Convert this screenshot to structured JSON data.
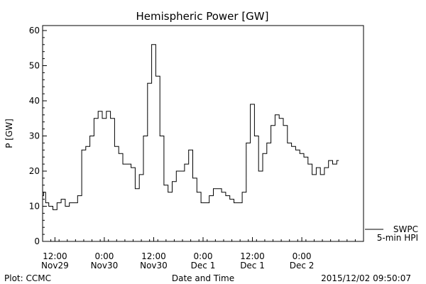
{
  "chart_data": {
    "type": "line",
    "title": "Hemispheric Power [GW]",
    "xlabel": "Date and Time",
    "ylabel": "P [GW]",
    "ylim": [
      0,
      62
    ],
    "yticks": [
      0,
      10,
      20,
      30,
      40,
      50,
      60
    ],
    "xlim": [
      "2015-11-29T09:00",
      "2015-12-02T15:00"
    ],
    "xticks": [
      {
        "t": "2015-11-29T12:00",
        "line1": "12:00",
        "line2": "Nov29"
      },
      {
        "t": "2015-11-30T00:00",
        "line1": "0:00",
        "line2": "Nov30"
      },
      {
        "t": "2015-11-30T12:00",
        "line1": "12:00",
        "line2": "Nov30"
      },
      {
        "t": "2015-12-01T00:00",
        "line1": "0:00",
        "line2": "Dec 1"
      },
      {
        "t": "2015-12-01T12:00",
        "line1": "12:00",
        "line2": "Dec 1"
      },
      {
        "t": "2015-12-02T00:00",
        "line1": "0:00",
        "line2": "Dec 2"
      }
    ],
    "grid": false,
    "legend": {
      "position": "bottom-right",
      "line1": "SWPC",
      "line2": "5-min HPI"
    },
    "series": [
      {
        "name": "SWPC 5-min HPI",
        "points": [
          [
            "2015-11-29T09:00",
            13
          ],
          [
            "2015-11-29T09:30",
            14
          ],
          [
            "2015-11-29T10:00",
            11
          ],
          [
            "2015-11-29T11:00",
            10
          ],
          [
            "2015-11-29T12:00",
            9
          ],
          [
            "2015-11-29T13:00",
            11
          ],
          [
            "2015-11-29T14:00",
            12
          ],
          [
            "2015-11-29T15:00",
            10
          ],
          [
            "2015-11-29T16:00",
            11
          ],
          [
            "2015-11-29T17:00",
            11
          ],
          [
            "2015-11-29T18:00",
            13
          ],
          [
            "2015-11-29T19:00",
            26
          ],
          [
            "2015-11-29T20:00",
            27
          ],
          [
            "2015-11-29T21:00",
            30
          ],
          [
            "2015-11-29T22:00",
            35
          ],
          [
            "2015-11-29T23:00",
            37
          ],
          [
            "2015-11-30T00:00",
            35
          ],
          [
            "2015-11-30T01:00",
            37
          ],
          [
            "2015-11-30T02:00",
            35
          ],
          [
            "2015-11-30T03:00",
            27
          ],
          [
            "2015-11-30T04:00",
            25
          ],
          [
            "2015-11-30T05:00",
            22
          ],
          [
            "2015-11-30T06:00",
            22
          ],
          [
            "2015-11-30T07:00",
            21
          ],
          [
            "2015-11-30T08:00",
            15
          ],
          [
            "2015-11-30T09:00",
            19
          ],
          [
            "2015-11-30T10:00",
            30
          ],
          [
            "2015-11-30T11:00",
            45
          ],
          [
            "2015-11-30T12:00",
            56
          ],
          [
            "2015-11-30T13:00",
            47
          ],
          [
            "2015-11-30T14:00",
            30
          ],
          [
            "2015-11-30T15:00",
            16
          ],
          [
            "2015-11-30T16:00",
            14
          ],
          [
            "2015-11-30T17:00",
            17
          ],
          [
            "2015-11-30T18:00",
            20
          ],
          [
            "2015-11-30T19:00",
            20
          ],
          [
            "2015-11-30T20:00",
            22
          ],
          [
            "2015-11-30T21:00",
            26
          ],
          [
            "2015-11-30T22:00",
            18
          ],
          [
            "2015-11-30T23:00",
            14
          ],
          [
            "2015-12-01T00:00",
            11
          ],
          [
            "2015-12-01T01:00",
            11
          ],
          [
            "2015-12-01T02:00",
            13
          ],
          [
            "2015-12-01T03:00",
            15
          ],
          [
            "2015-12-01T04:00",
            15
          ],
          [
            "2015-12-01T05:00",
            14
          ],
          [
            "2015-12-01T06:00",
            13
          ],
          [
            "2015-12-01T07:00",
            12
          ],
          [
            "2015-12-01T08:00",
            11
          ],
          [
            "2015-12-01T09:00",
            11
          ],
          [
            "2015-12-01T10:00",
            14
          ],
          [
            "2015-12-01T11:00",
            28
          ],
          [
            "2015-12-01T12:00",
            39
          ],
          [
            "2015-12-01T13:00",
            30
          ],
          [
            "2015-12-01T14:00",
            20
          ],
          [
            "2015-12-01T15:00",
            25
          ],
          [
            "2015-12-01T16:00",
            28
          ],
          [
            "2015-12-01T17:00",
            33
          ],
          [
            "2015-12-01T18:00",
            36
          ],
          [
            "2015-12-01T19:00",
            35
          ],
          [
            "2015-12-01T20:00",
            33
          ],
          [
            "2015-12-01T21:00",
            28
          ],
          [
            "2015-12-01T22:00",
            27
          ],
          [
            "2015-12-01T23:00",
            26
          ],
          [
            "2015-12-02T00:00",
            25
          ],
          [
            "2015-12-02T01:00",
            24
          ],
          [
            "2015-12-02T02:00",
            22
          ],
          [
            "2015-12-02T03:00",
            19
          ],
          [
            "2015-12-02T04:00",
            21
          ],
          [
            "2015-12-02T05:00",
            19
          ],
          [
            "2015-12-02T06:00",
            21
          ],
          [
            "2015-12-02T07:00",
            23
          ],
          [
            "2015-12-02T08:00",
            22
          ],
          [
            "2015-12-02T09:00",
            23
          ]
        ]
      }
    ]
  },
  "footer": {
    "credit": "Plot: CCMC",
    "timestamp": "2015/12/02 09:50:07"
  }
}
